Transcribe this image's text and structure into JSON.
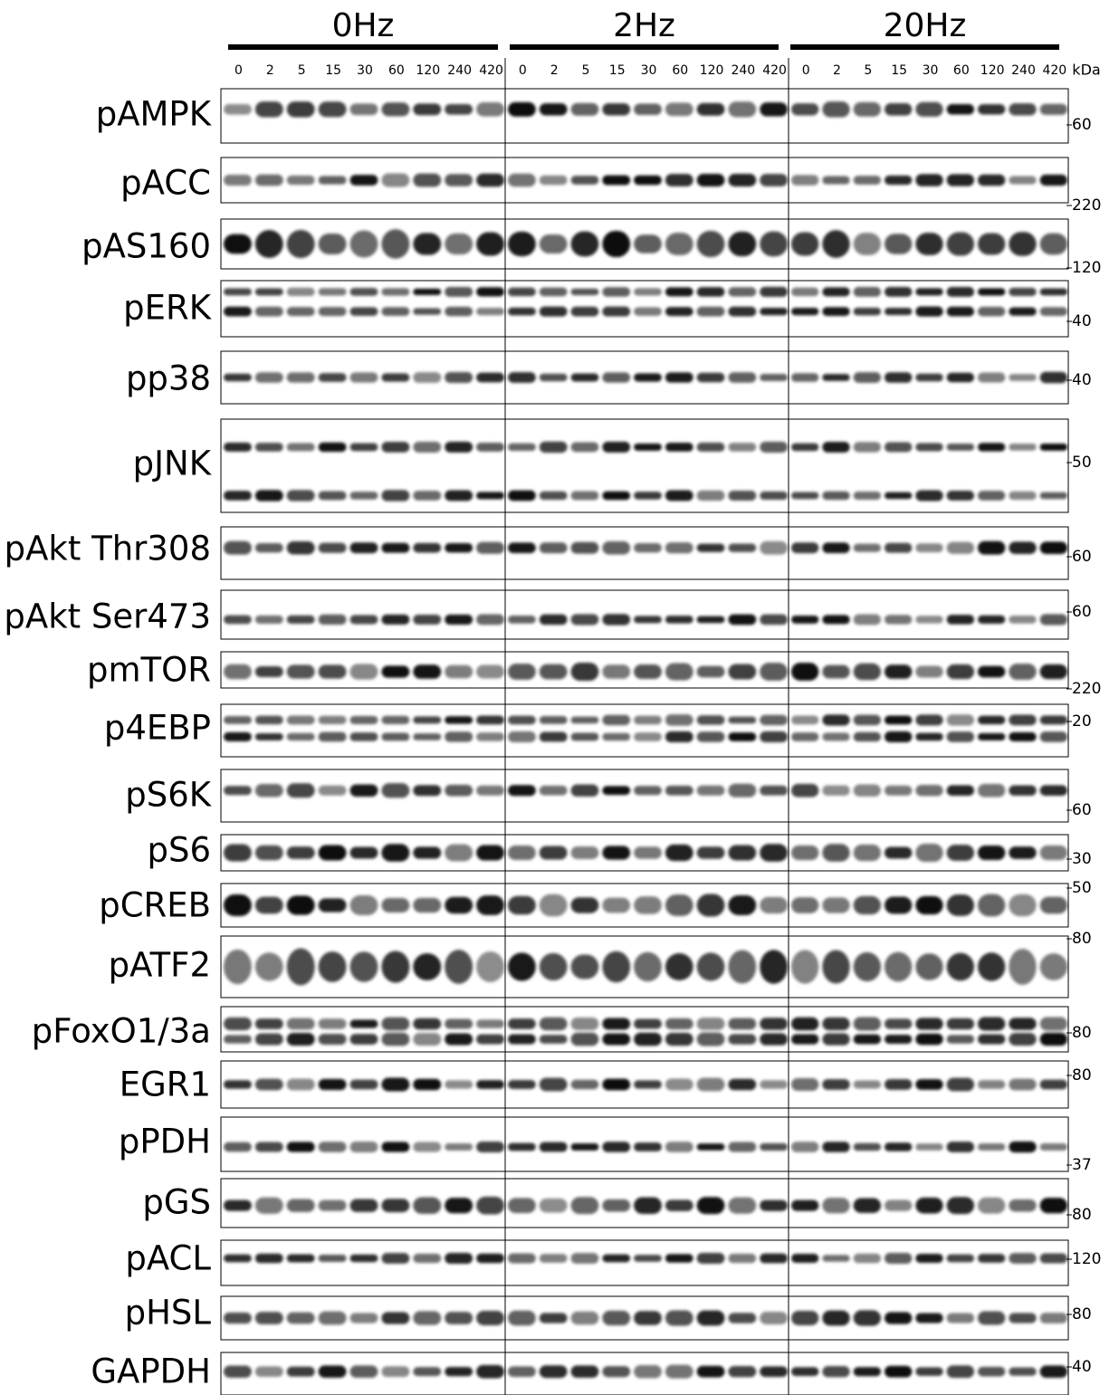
{
  "header": {
    "groups": [
      {
        "label": "0Hz",
        "lanes": [
          0,
          2,
          5,
          15,
          30,
          60,
          120,
          240,
          420
        ]
      },
      {
        "label": "2Hz",
        "lanes": [
          0,
          2,
          5,
          15,
          30,
          60,
          120,
          240,
          420
        ]
      },
      {
        "label": "20Hz",
        "lanes": [
          0,
          2,
          5,
          15,
          30,
          60,
          120,
          240,
          420
        ]
      }
    ],
    "unit": "kDa"
  },
  "rows": [
    {
      "label": "pAMPK",
      "marker": 60
    },
    {
      "label": "pACC",
      "marker": 220
    },
    {
      "label": "pAS160",
      "marker": 120
    },
    {
      "label": "pERK",
      "marker": 40
    },
    {
      "label": "pp38",
      "marker": 40
    },
    {
      "label": "pJNK",
      "marker": 50
    },
    {
      "label": "pAkt Thr308",
      "marker": 60
    },
    {
      "label": "pAkt Ser473",
      "marker": 60
    },
    {
      "label": "pmTOR",
      "marker": 220
    },
    {
      "label": "p4EBP",
      "marker": 20
    },
    {
      "label": "pS6K",
      "marker": 60
    },
    {
      "label": "pS6",
      "marker": 30
    },
    {
      "label": "pCREB",
      "marker": 50
    },
    {
      "label": "pATF2",
      "marker": 80
    },
    {
      "label": "pFoxO1/3a",
      "marker": 80
    },
    {
      "label": "EGR1",
      "marker": 80
    },
    {
      "label": "pPDH",
      "marker": 37
    },
    {
      "label": "pGS",
      "marker": 80
    },
    {
      "label": "pACL",
      "marker": 120
    },
    {
      "label": "pHSL",
      "marker": 80
    },
    {
      "label": "GAPDH",
      "marker": 40
    }
  ]
}
